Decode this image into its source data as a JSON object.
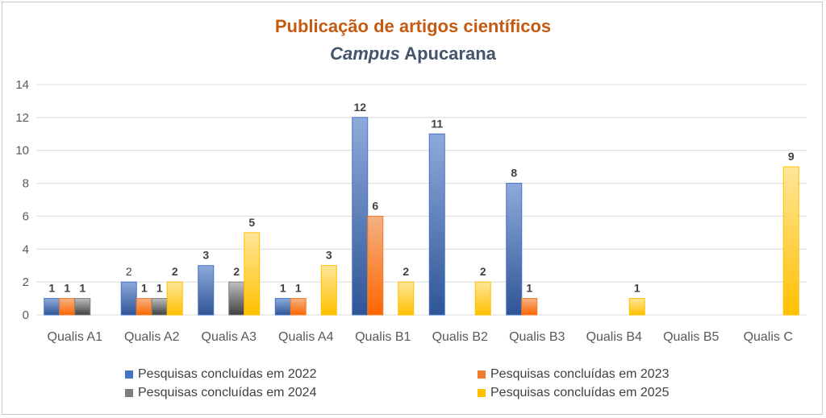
{
  "title": "Publicação de artigos científicos",
  "subtitle_italic": "Campus",
  "subtitle_rest": " Apucarana",
  "colors": {
    "s2022": "#4472c4",
    "s2023": "#ed7d31",
    "s2024": "#7f7f7f",
    "s2025": "#ffc000"
  },
  "chart_data": {
    "type": "bar",
    "title": "Publicação de artigos científicos",
    "subtitle": "Campus Apucarana",
    "categories": [
      "Qualis A1",
      "Qualis A2",
      "Qualis A3",
      "Qualis A4",
      "Qualis B1",
      "Qualis B2",
      "Qualis B3",
      "Qualis B4",
      "Qualis B5",
      "Qualis C"
    ],
    "ylim": [
      0,
      14
    ],
    "yticks": [
      0,
      2,
      4,
      6,
      8,
      10,
      12,
      14
    ],
    "grid": true,
    "legend_position": "bottom",
    "series": [
      {
        "name": "Pesquisas concluídas em 2022",
        "color": "#4472c4",
        "values": [
          1,
          2,
          3,
          1,
          12,
          11,
          8,
          null,
          null,
          null
        ]
      },
      {
        "name": "Pesquisas concluídas em 2023",
        "color": "#ed7d31",
        "values": [
          1,
          1,
          null,
          1,
          6,
          null,
          1,
          null,
          null,
          null
        ]
      },
      {
        "name": "Pesquisas concluídas em 2024",
        "color": "#7f7f7f",
        "values": [
          1,
          1,
          2,
          null,
          null,
          null,
          null,
          null,
          null,
          null
        ]
      },
      {
        "name": "Pesquisas concluídas em 2025",
        "color": "#ffc000",
        "values": [
          null,
          2,
          5,
          3,
          2,
          2,
          null,
          1,
          null,
          9
        ]
      }
    ]
  }
}
